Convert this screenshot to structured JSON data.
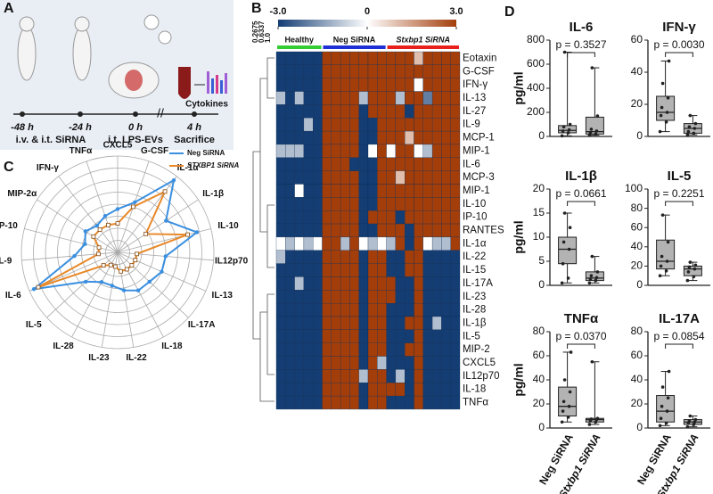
{
  "panel_letters": [
    "A",
    "B",
    "C",
    "D"
  ],
  "schematic": {
    "timepoints": [
      "-48 h",
      "-24 h",
      "0 h",
      "4 h"
    ],
    "events": [
      "i.v. & i.t. SiRNA",
      "i.t. LPS-EVs",
      "Sacrifice"
    ],
    "readout": "Cytokines"
  },
  "chart_data": [
    {
      "type": "heatmap",
      "clim": [
        -3,
        3
      ],
      "colorbar_ticks": [
        {
          "value": -3,
          "label": "-3.0"
        },
        0,
        {
          "value": 3,
          "label": "3.0"
        }
      ],
      "dendrogram_labels": [
        "0.2675",
        "0.6337",
        "1.0"
      ],
      "groups": [
        {
          "name": "Healthy",
          "color": "#33cc33",
          "columns": 5
        },
        {
          "name": "Neg SiRNA",
          "color": "#1f2fd6",
          "columns": 7
        },
        {
          "name": "Stxbp1 SiRNA",
          "color": "#e8201c",
          "columns": 8
        }
      ],
      "rows": [
        "Eotaxin",
        "G-CSF",
        "IFN-γ",
        "IL-13",
        "IL-27",
        "IL-9",
        "MCP-1",
        "MIP-1",
        "IL-6",
        "MCP-3",
        "MIP-1",
        "IL-10",
        "IP-10",
        "RANTES",
        "IL-1α",
        "IL-22",
        "IL-15",
        "IL-17A",
        "IL-23",
        "IL-28",
        "IL-1β",
        "IL-5",
        "MIP-2",
        "CXCL5",
        "IL12p70",
        "IL-18",
        "TNFα"
      ],
      "values": [
        [
          -3,
          -3,
          -3,
          -3,
          -3,
          3,
          3,
          3,
          3,
          3,
          3,
          3,
          3,
          3,
          3,
          1,
          3,
          3,
          3,
          3
        ],
        [
          -3,
          -3,
          -3,
          -3,
          -3,
          3,
          3,
          3,
          3,
          3,
          3,
          3,
          3,
          3,
          3,
          3,
          3,
          3,
          3,
          3
        ],
        [
          -3,
          -3,
          -3,
          -3,
          -3,
          3,
          3,
          3,
          3,
          3,
          3,
          3,
          3,
          3,
          3,
          0,
          3,
          3,
          3,
          3
        ],
        [
          -1,
          -3,
          -1,
          -3,
          -3,
          3,
          3,
          3,
          3,
          -1,
          3,
          3,
          3,
          -1,
          3,
          3,
          -2,
          3,
          3,
          3
        ],
        [
          -3,
          -3,
          -3,
          -3,
          -3,
          3,
          3,
          3,
          3,
          -3,
          3,
          3,
          3,
          3,
          -3,
          3,
          3,
          3,
          3,
          3
        ],
        [
          -3,
          -3,
          -3,
          -1,
          -3,
          3,
          3,
          3,
          3,
          -3,
          -3,
          3,
          3,
          3,
          3,
          3,
          3,
          3,
          3,
          3
        ],
        [
          -3,
          -3,
          -3,
          -3,
          -3,
          3,
          3,
          3,
          3,
          -3,
          -3,
          3,
          3,
          3,
          1,
          3,
          3,
          3,
          3,
          3
        ],
        [
          -1,
          -1,
          -1,
          -3,
          -3,
          3,
          3,
          3,
          3,
          -3,
          0,
          3,
          0,
          3,
          3,
          0,
          -1,
          3,
          3,
          3
        ],
        [
          -3,
          -3,
          -3,
          -3,
          -3,
          3,
          3,
          3,
          -3,
          -3,
          -3,
          3,
          3,
          3,
          3,
          3,
          3,
          3,
          3,
          3
        ],
        [
          -3,
          -3,
          -3,
          -3,
          -3,
          3,
          3,
          3,
          3,
          -3,
          -3,
          3,
          3,
          1,
          3,
          3,
          3,
          3,
          3,
          3
        ],
        [
          -3,
          -3,
          0,
          -3,
          -3,
          3,
          3,
          3,
          3,
          -3,
          -3,
          3,
          3,
          3,
          3,
          3,
          3,
          3,
          3,
          3
        ],
        [
          -3,
          -3,
          -3,
          -3,
          -3,
          3,
          3,
          3,
          3,
          -3,
          -3,
          3,
          3,
          3,
          3,
          3,
          3,
          3,
          3,
          3
        ],
        [
          -3,
          -3,
          -3,
          -3,
          -3,
          3,
          3,
          3,
          3,
          -3,
          3,
          3,
          3,
          -3,
          3,
          3,
          3,
          3,
          3,
          3
        ],
        [
          -3,
          -3,
          -3,
          -3,
          -3,
          3,
          3,
          3,
          3,
          -3,
          -3,
          3,
          3,
          3,
          -3,
          3,
          3,
          3,
          3,
          3
        ],
        [
          0,
          -1,
          0,
          -1,
          0,
          3,
          3,
          -1,
          3,
          0,
          -1,
          0,
          -1,
          3,
          -3,
          3,
          0,
          -1,
          -1,
          3
        ],
        [
          -1,
          -3,
          -3,
          -3,
          -3,
          3,
          3,
          3,
          3,
          -3,
          3,
          3,
          -3,
          -3,
          3,
          3,
          -3,
          -3,
          -3,
          -3
        ],
        [
          -3,
          -3,
          -3,
          -3,
          -3,
          3,
          3,
          3,
          3,
          -3,
          3,
          3,
          -3,
          -3,
          3,
          3,
          -3,
          -3,
          -3,
          -3
        ],
        [
          -3,
          -3,
          -1,
          -3,
          -3,
          3,
          3,
          3,
          3,
          -3,
          3,
          3,
          3,
          -3,
          -3,
          3,
          -3,
          -3,
          -3,
          -3
        ],
        [
          -3,
          -3,
          -3,
          -3,
          -3,
          3,
          3,
          3,
          3,
          -3,
          3,
          3,
          3,
          -3,
          -3,
          3,
          -3,
          -3,
          -3,
          -3
        ],
        [
          -3,
          -3,
          -3,
          -3,
          -3,
          3,
          3,
          3,
          3,
          -3,
          3,
          3,
          -3,
          -3,
          -3,
          3,
          -3,
          -3,
          -3,
          -3
        ],
        [
          -3,
          -3,
          -3,
          -3,
          -3,
          3,
          3,
          3,
          3,
          -3,
          3,
          3,
          -3,
          -3,
          3,
          3,
          -3,
          -1,
          -3,
          -3
        ],
        [
          -3,
          -3,
          -3,
          -3,
          -3,
          3,
          3,
          3,
          3,
          -3,
          3,
          3,
          -3,
          -3,
          -3,
          3,
          -3,
          -3,
          -3,
          -3
        ],
        [
          -3,
          -3,
          -3,
          -3,
          -3,
          3,
          3,
          3,
          3,
          -3,
          3,
          3,
          -3,
          -3,
          3,
          3,
          -3,
          -3,
          -3,
          -3
        ],
        [
          -3,
          -3,
          -3,
          -3,
          -3,
          3,
          3,
          3,
          3,
          -3,
          3,
          -1,
          -3,
          -3,
          -3,
          3,
          -3,
          -3,
          -3,
          -3
        ],
        [
          -3,
          -3,
          -3,
          -3,
          -3,
          3,
          3,
          3,
          3,
          -1,
          3,
          3,
          -3,
          -1,
          -3,
          3,
          -3,
          -3,
          -3,
          -3
        ],
        [
          -3,
          -3,
          -3,
          -3,
          -3,
          3,
          3,
          3,
          3,
          -3,
          3,
          3,
          3,
          3,
          -3,
          3,
          -3,
          -3,
          -3,
          -3
        ],
        [
          -3,
          -3,
          -3,
          -3,
          -3,
          3,
          3,
          3,
          3,
          -3,
          3,
          3,
          -3,
          -3,
          -3,
          3,
          -3,
          -3,
          -3,
          -3
        ]
      ]
    },
    {
      "type": "radar",
      "axes": [
        "CXCL5",
        "G-CSF",
        "IL-1α",
        "IL-1β",
        "IL-10",
        "IL12p70",
        "IL-13",
        "IL-17A",
        "IL-18",
        "IL-22",
        "IL-23",
        "IL-28",
        "IL-5",
        "IL-6",
        "IL-9",
        "IP-10",
        "MIP-2α",
        "IFN-γ",
        "TNFα"
      ],
      "rlim": [
        0,
        1
      ],
      "rticks": [
        0.125,
        0.25,
        0.375,
        0.5,
        0.625,
        0.75,
        0.875,
        1
      ],
      "legend": "upper right",
      "series": [
        {
          "name": "Neg SiRNA",
          "color": "#3a8fe0",
          "values": [
            0.45,
            0.55,
            0.95,
            0.6,
            0.85,
            0.5,
            0.5,
            0.45,
            0.45,
            0.4,
            0.35,
            0.35,
            0.45,
            0.95,
            0.45,
            0.35,
            0.4,
            0.35,
            0.4
          ]
        },
        {
          "name": "STXBP1 SiRNA",
          "color": "#e8892a",
          "values": [
            0.3,
            0.5,
            0.8,
            0.35,
            0.75,
            0.2,
            0.2,
            0.2,
            0.2,
            0.2,
            0.15,
            0.15,
            0.2,
            0.9,
            0.2,
            0.2,
            0.3,
            0.3,
            0.3
          ]
        }
      ]
    },
    {
      "type": "box",
      "categories": [
        "Neg SiRNA",
        "Stxbp1 SiRNA"
      ],
      "ylabel": "pg/ml",
      "color": "#b3b3b3",
      "panels": [
        {
          "title": "IL-6",
          "p_value": "p = 0.3527",
          "ylim": [
            0,
            800
          ],
          "yticks": [
            0,
            200,
            400,
            600,
            800
          ],
          "boxes": [
            {
              "min": 5,
              "q1": 30,
              "median": 50,
              "q3": 90,
              "max": 700,
              "points": [
                5,
                30,
                45,
                55,
                80,
                100,
                700
              ]
            },
            {
              "min": 10,
              "q1": 20,
              "median": 40,
              "q3": 160,
              "max": 570,
              "points": [
                10,
                20,
                30,
                45,
                60,
                170,
                570
              ]
            }
          ]
        },
        {
          "title": "IFN-γ",
          "p_value": "p = 0.0030",
          "ylim": [
            0,
            60
          ],
          "yticks": [
            0,
            20,
            40,
            60
          ],
          "boxes": [
            {
              "min": 3,
              "q1": 10,
              "median": 15,
              "q3": 25,
              "max": 47,
              "points": [
                3,
                9,
                13,
                15,
                18,
                24,
                33,
                47
              ]
            },
            {
              "min": 1,
              "q1": 2,
              "median": 5,
              "q3": 8,
              "max": 13,
              "points": [
                1,
                2,
                3,
                5,
                6,
                8,
                13
              ]
            }
          ]
        },
        {
          "title": "IL-1β",
          "p_value": "p = 0.0661",
          "ylim": [
            0,
            20
          ],
          "yticks": [
            0,
            5,
            10,
            15,
            20
          ],
          "boxes": [
            {
              "min": 0.5,
              "q1": 4.5,
              "median": 7.5,
              "q3": 10,
              "max": 15,
              "points": [
                0.5,
                1.5,
                4.5,
                7.5,
                9,
                12,
                15
              ]
            },
            {
              "min": 0.5,
              "q1": 1,
              "median": 1.5,
              "q3": 2.8,
              "max": 6,
              "points": [
                0.5,
                1,
                1.3,
                1.6,
                2,
                2.8,
                6
              ]
            }
          ]
        },
        {
          "title": "IL-5",
          "p_value": "p = 0.2251",
          "ylim": [
            0,
            100
          ],
          "yticks": [
            0,
            20,
            40,
            60,
            80,
            100
          ],
          "boxes": [
            {
              "min": 10,
              "q1": 17,
              "median": 25,
              "q3": 47,
              "max": 73,
              "points": [
                10,
                15,
                20,
                25,
                30,
                45,
                73
              ]
            },
            {
              "min": 5,
              "q1": 10,
              "median": 17,
              "q3": 20,
              "max": 24,
              "points": [
                5,
                9,
                14,
                17,
                19,
                21,
                24
              ]
            }
          ]
        },
        {
          "title": "TNFα",
          "p_value": "p = 0.0370",
          "ylim": [
            0,
            80
          ],
          "yticks": [
            0,
            20,
            40,
            60,
            80
          ],
          "boxes": [
            {
              "min": 5,
              "q1": 10,
              "median": 18,
              "q3": 34,
              "max": 63,
              "points": [
                5,
                9,
                14,
                18,
                22,
                30,
                40,
                63
              ]
            },
            {
              "min": 3,
              "q1": 5,
              "median": 7,
              "q3": 8,
              "max": 55,
              "points": [
                3,
                5,
                6,
                7,
                7.5,
                8,
                55
              ]
            }
          ]
        },
        {
          "title": "IL-17A",
          "p_value": "p = 0.0854",
          "ylim": [
            0,
            80
          ],
          "yticks": [
            0,
            20,
            40,
            60,
            80
          ],
          "boxes": [
            {
              "min": 2,
              "q1": 5,
              "median": 14,
              "q3": 27,
              "max": 47,
              "points": [
                2,
                4,
                8,
                14,
                18,
                25,
                34,
                47
              ]
            },
            {
              "min": 1,
              "q1": 3,
              "median": 5,
              "q3": 7,
              "max": 10,
              "points": [
                1,
                3,
                4,
                5,
                6,
                7,
                10
              ]
            }
          ]
        }
      ]
    }
  ]
}
